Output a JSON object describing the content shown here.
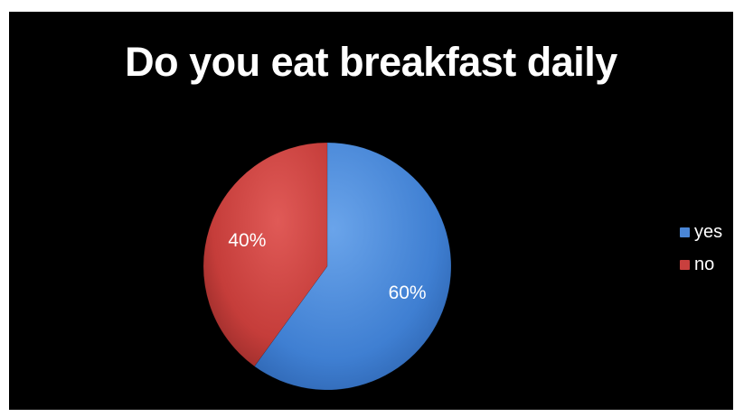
{
  "chart_data": {
    "type": "pie",
    "title": "Do you eat breakfast daily",
    "categories": [
      "yes",
      "no"
    ],
    "values": [
      60,
      40
    ],
    "data_labels": [
      "60%",
      "40%"
    ],
    "colors": [
      "#4a86d6",
      "#c9403e"
    ],
    "legend_position": "right"
  },
  "legend": {
    "items": [
      {
        "label": "yes",
        "color": "#4a86d6"
      },
      {
        "label": "no",
        "color": "#c9403e"
      }
    ]
  }
}
